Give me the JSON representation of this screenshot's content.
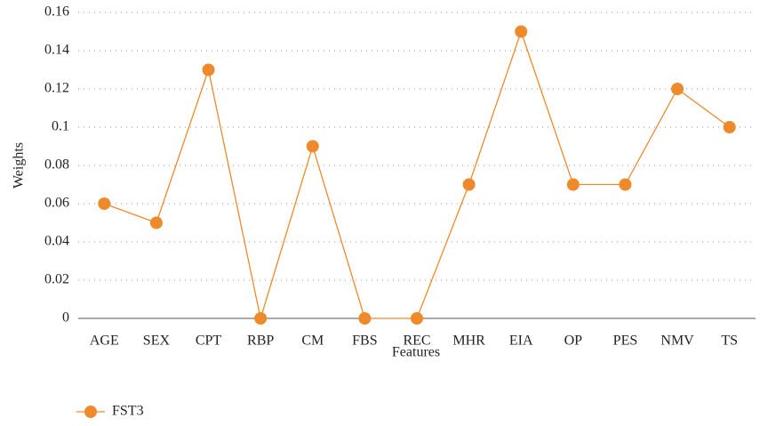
{
  "chart_data": {
    "type": "line",
    "x_label": "Features",
    "y_label": "Weights",
    "categories": [
      "AGE",
      "SEX",
      "CPT",
      "RBP",
      "CM",
      "FBS",
      "REC",
      "MHR",
      "EIA",
      "OP",
      "PES",
      "NMV",
      "TS"
    ],
    "series": [
      {
        "name": "FST3",
        "color": "#ee8a2c",
        "values": [
          0.06,
          0.05,
          0.13,
          0,
          0.09,
          0,
          0,
          0.07,
          0.15,
          0.07,
          0.07,
          0.12,
          0.1
        ]
      }
    ],
    "ylim": [
      0,
      0.16
    ],
    "yticks": [
      0,
      0.02,
      0.04,
      0.06,
      0.08,
      0.1,
      0.12,
      0.14,
      0.16
    ],
    "grid": true,
    "legend": "bottom-left"
  }
}
